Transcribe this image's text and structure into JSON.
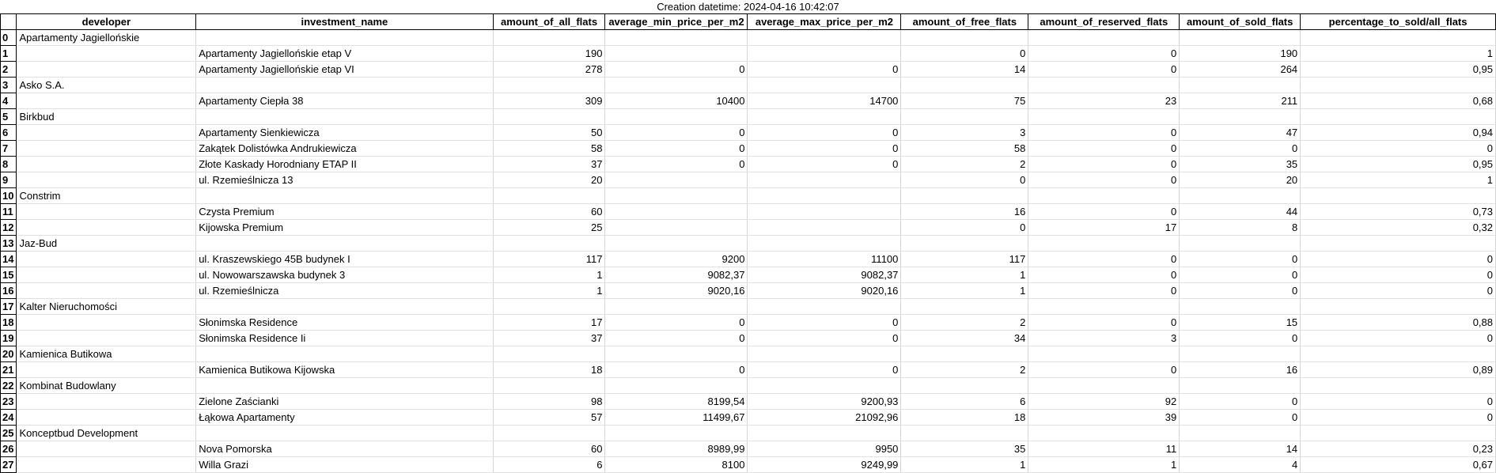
{
  "caption": "Creation datetime: 2024-04-16 10:42:07",
  "columns": [
    "developer",
    "investment_name",
    "amount_of_all_flats",
    "average_min_price_per_m2",
    "average_max_price_per_m2",
    "amount_of_free_flats",
    "amount_of_reserved_flats",
    "amount_of_sold_flats",
    "percentage_to_sold/all_flats"
  ],
  "rows": [
    {
      "idx": "0",
      "developer": "Apartamenty Jagiellońskie",
      "investment_name": "",
      "all": "",
      "min": "",
      "max": "",
      "free": "",
      "reserved": "",
      "sold": "",
      "pct": ""
    },
    {
      "idx": "1",
      "developer": "",
      "investment_name": "Apartamenty Jagiellońskie etap V",
      "all": "190",
      "min": "",
      "max": "",
      "free": "0",
      "reserved": "0",
      "sold": "190",
      "pct": "1"
    },
    {
      "idx": "2",
      "developer": "",
      "investment_name": "Apartamenty Jagiellońskie etap VI",
      "all": "278",
      "min": "0",
      "max": "0",
      "free": "14",
      "reserved": "0",
      "sold": "264",
      "pct": "0,95"
    },
    {
      "idx": "3",
      "developer": "Asko S.A.",
      "investment_name": "",
      "all": "",
      "min": "",
      "max": "",
      "free": "",
      "reserved": "",
      "sold": "",
      "pct": ""
    },
    {
      "idx": "4",
      "developer": "",
      "investment_name": "Apartamenty Ciepła 38",
      "all": "309",
      "min": "10400",
      "max": "14700",
      "free": "75",
      "reserved": "23",
      "sold": "211",
      "pct": "0,68"
    },
    {
      "idx": "5",
      "developer": "Birkbud",
      "investment_name": "",
      "all": "",
      "min": "",
      "max": "",
      "free": "",
      "reserved": "",
      "sold": "",
      "pct": ""
    },
    {
      "idx": "6",
      "developer": "",
      "investment_name": "Apartamenty Sienkiewicza",
      "all": "50",
      "min": "0",
      "max": "0",
      "free": "3",
      "reserved": "0",
      "sold": "47",
      "pct": "0,94"
    },
    {
      "idx": "7",
      "developer": "",
      "investment_name": "Zakątek Dolistówka Andrukiewicza",
      "all": "58",
      "min": "0",
      "max": "0",
      "free": "58",
      "reserved": "0",
      "sold": "0",
      "pct": "0"
    },
    {
      "idx": "8",
      "developer": "",
      "investment_name": "Złote Kaskady Horodniany ETAP II",
      "all": "37",
      "min": "0",
      "max": "0",
      "free": "2",
      "reserved": "0",
      "sold": "35",
      "pct": "0,95"
    },
    {
      "idx": "9",
      "developer": "",
      "investment_name": "ul. Rzemieślnicza 13",
      "all": "20",
      "min": "",
      "max": "",
      "free": "0",
      "reserved": "0",
      "sold": "20",
      "pct": "1"
    },
    {
      "idx": "10",
      "developer": "Constrim",
      "investment_name": "",
      "all": "",
      "min": "",
      "max": "",
      "free": "",
      "reserved": "",
      "sold": "",
      "pct": ""
    },
    {
      "idx": "11",
      "developer": "",
      "investment_name": "Czysta Premium",
      "all": "60",
      "min": "",
      "max": "",
      "free": "16",
      "reserved": "0",
      "sold": "44",
      "pct": "0,73"
    },
    {
      "idx": "12",
      "developer": "",
      "investment_name": "Kijowska Premium",
      "all": "25",
      "min": "",
      "max": "",
      "free": "0",
      "reserved": "17",
      "sold": "8",
      "pct": "0,32"
    },
    {
      "idx": "13",
      "developer": "Jaz-Bud",
      "investment_name": "",
      "all": "",
      "min": "",
      "max": "",
      "free": "",
      "reserved": "",
      "sold": "",
      "pct": ""
    },
    {
      "idx": "14",
      "developer": "",
      "investment_name": " ul. Kraszewskiego 45B budynek I",
      "all": "117",
      "min": "9200",
      "max": "11100",
      "free": "117",
      "reserved": "0",
      "sold": "0",
      "pct": "0"
    },
    {
      "idx": "15",
      "developer": "",
      "investment_name": " ul. Nowowarszawska budynek 3",
      "all": "1",
      "min": "9082,37",
      "max": "9082,37",
      "free": "1",
      "reserved": "0",
      "sold": "0",
      "pct": "0"
    },
    {
      "idx": "16",
      "developer": "",
      "investment_name": " ul. Rzemieślnicza",
      "all": "1",
      "min": "9020,16",
      "max": "9020,16",
      "free": "1",
      "reserved": "0",
      "sold": "0",
      "pct": "0"
    },
    {
      "idx": "17",
      "developer": "Kalter Nieruchomości",
      "investment_name": "",
      "all": "",
      "min": "",
      "max": "",
      "free": "",
      "reserved": "",
      "sold": "",
      "pct": ""
    },
    {
      "idx": "18",
      "developer": "",
      "investment_name": "Słonimska Residence",
      "all": "17",
      "min": "0",
      "max": "0",
      "free": "2",
      "reserved": "0",
      "sold": "15",
      "pct": "0,88"
    },
    {
      "idx": "19",
      "developer": "",
      "investment_name": "Słonimska Residence Ii",
      "all": "37",
      "min": "0",
      "max": "0",
      "free": "34",
      "reserved": "3",
      "sold": "0",
      "pct": "0"
    },
    {
      "idx": "20",
      "developer": "Kamienica Butikowa",
      "investment_name": "",
      "all": "",
      "min": "",
      "max": "",
      "free": "",
      "reserved": "",
      "sold": "",
      "pct": ""
    },
    {
      "idx": "21",
      "developer": "",
      "investment_name": "Kamienica Butikowa Kijowska",
      "all": "18",
      "min": "0",
      "max": "0",
      "free": "2",
      "reserved": "0",
      "sold": "16",
      "pct": "0,89"
    },
    {
      "idx": "22",
      "developer": "Kombinat Budowlany",
      "investment_name": "",
      "all": "",
      "min": "",
      "max": "",
      "free": "",
      "reserved": "",
      "sold": "",
      "pct": ""
    },
    {
      "idx": "23",
      "developer": "",
      "investment_name": "Zielone Zaścianki",
      "all": "98",
      "min": "8199,54",
      "max": "9200,93",
      "free": "6",
      "reserved": "92",
      "sold": "0",
      "pct": "0"
    },
    {
      "idx": "24",
      "developer": "",
      "investment_name": "Łąkowa Apartamenty",
      "all": "57",
      "min": "11499,67",
      "max": "21092,96",
      "free": "18",
      "reserved": "39",
      "sold": "0",
      "pct": "0"
    },
    {
      "idx": "25",
      "developer": "Konceptbud Development",
      "investment_name": "",
      "all": "",
      "min": "",
      "max": "",
      "free": "",
      "reserved": "",
      "sold": "",
      "pct": ""
    },
    {
      "idx": "26",
      "developer": "",
      "investment_name": "Nova Pomorska",
      "all": "60",
      "min": "8989,99",
      "max": "9950",
      "free": "35",
      "reserved": "11",
      "sold": "14",
      "pct": "0,23"
    },
    {
      "idx": "27",
      "developer": "",
      "investment_name": "Willa Grazi",
      "all": "6",
      "min": "8100",
      "max": "9249,99",
      "free": "1",
      "reserved": "1",
      "sold": "4",
      "pct": "0,67"
    }
  ]
}
